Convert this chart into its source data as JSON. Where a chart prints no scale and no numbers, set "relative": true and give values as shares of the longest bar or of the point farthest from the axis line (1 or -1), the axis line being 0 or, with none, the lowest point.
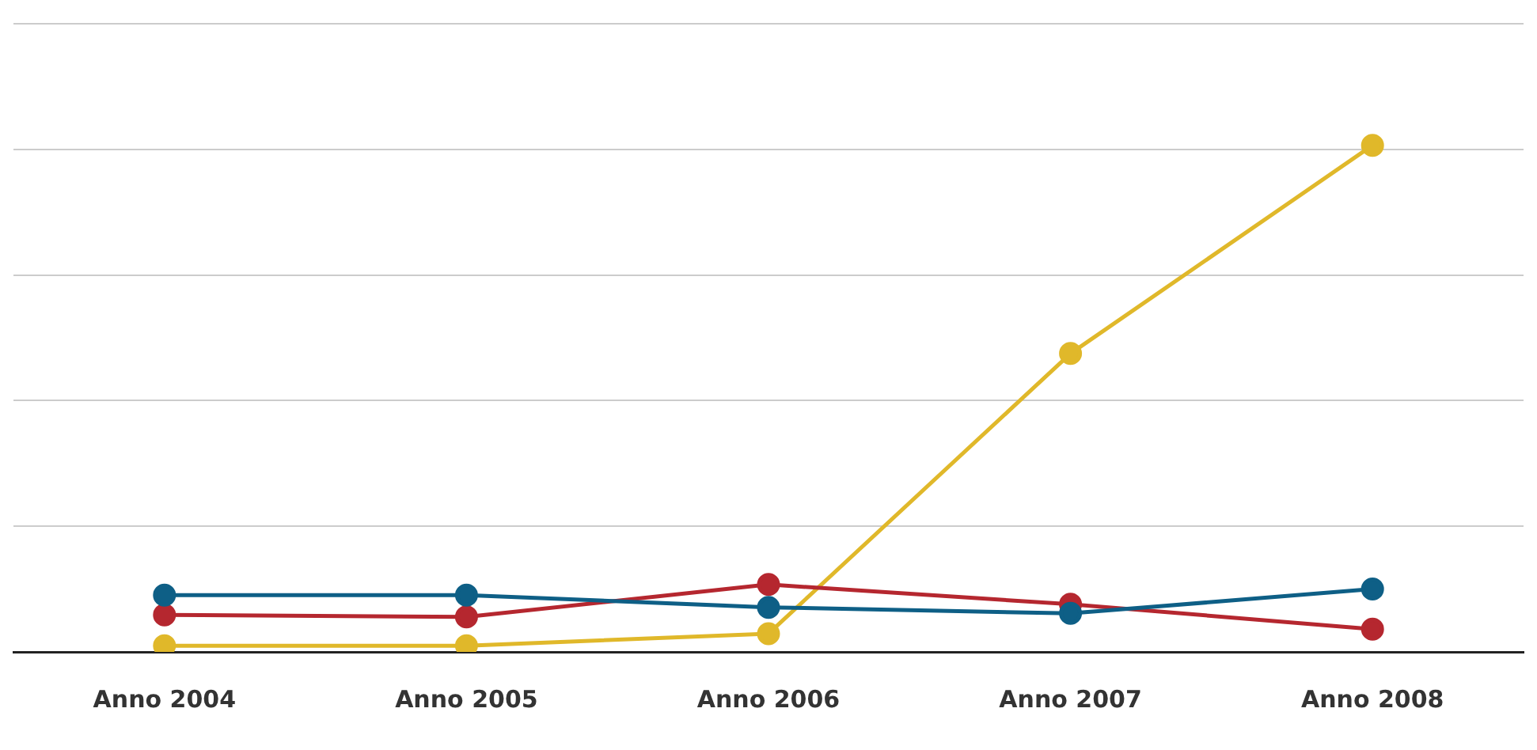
{
  "chart_data": {
    "type": "line",
    "relative": true,
    "categories": [
      "Anno 2004",
      "Anno 2005",
      "Anno 2006",
      "Anno 2007",
      "Anno 2008"
    ],
    "series": [
      {
        "color": "#0e5f86",
        "values": [
          0.112,
          0.112,
          0.088,
          0.076,
          0.124
        ]
      },
      {
        "color": "#b5272f",
        "values": [
          0.073,
          0.069,
          0.133,
          0.094,
          0.045
        ]
      },
      {
        "color": "#e0b82a",
        "values": [
          0.012,
          0.012,
          0.036,
          0.589,
          1
        ]
      }
    ],
    "marker": "circle",
    "grid": "y",
    "legend": false
  }
}
